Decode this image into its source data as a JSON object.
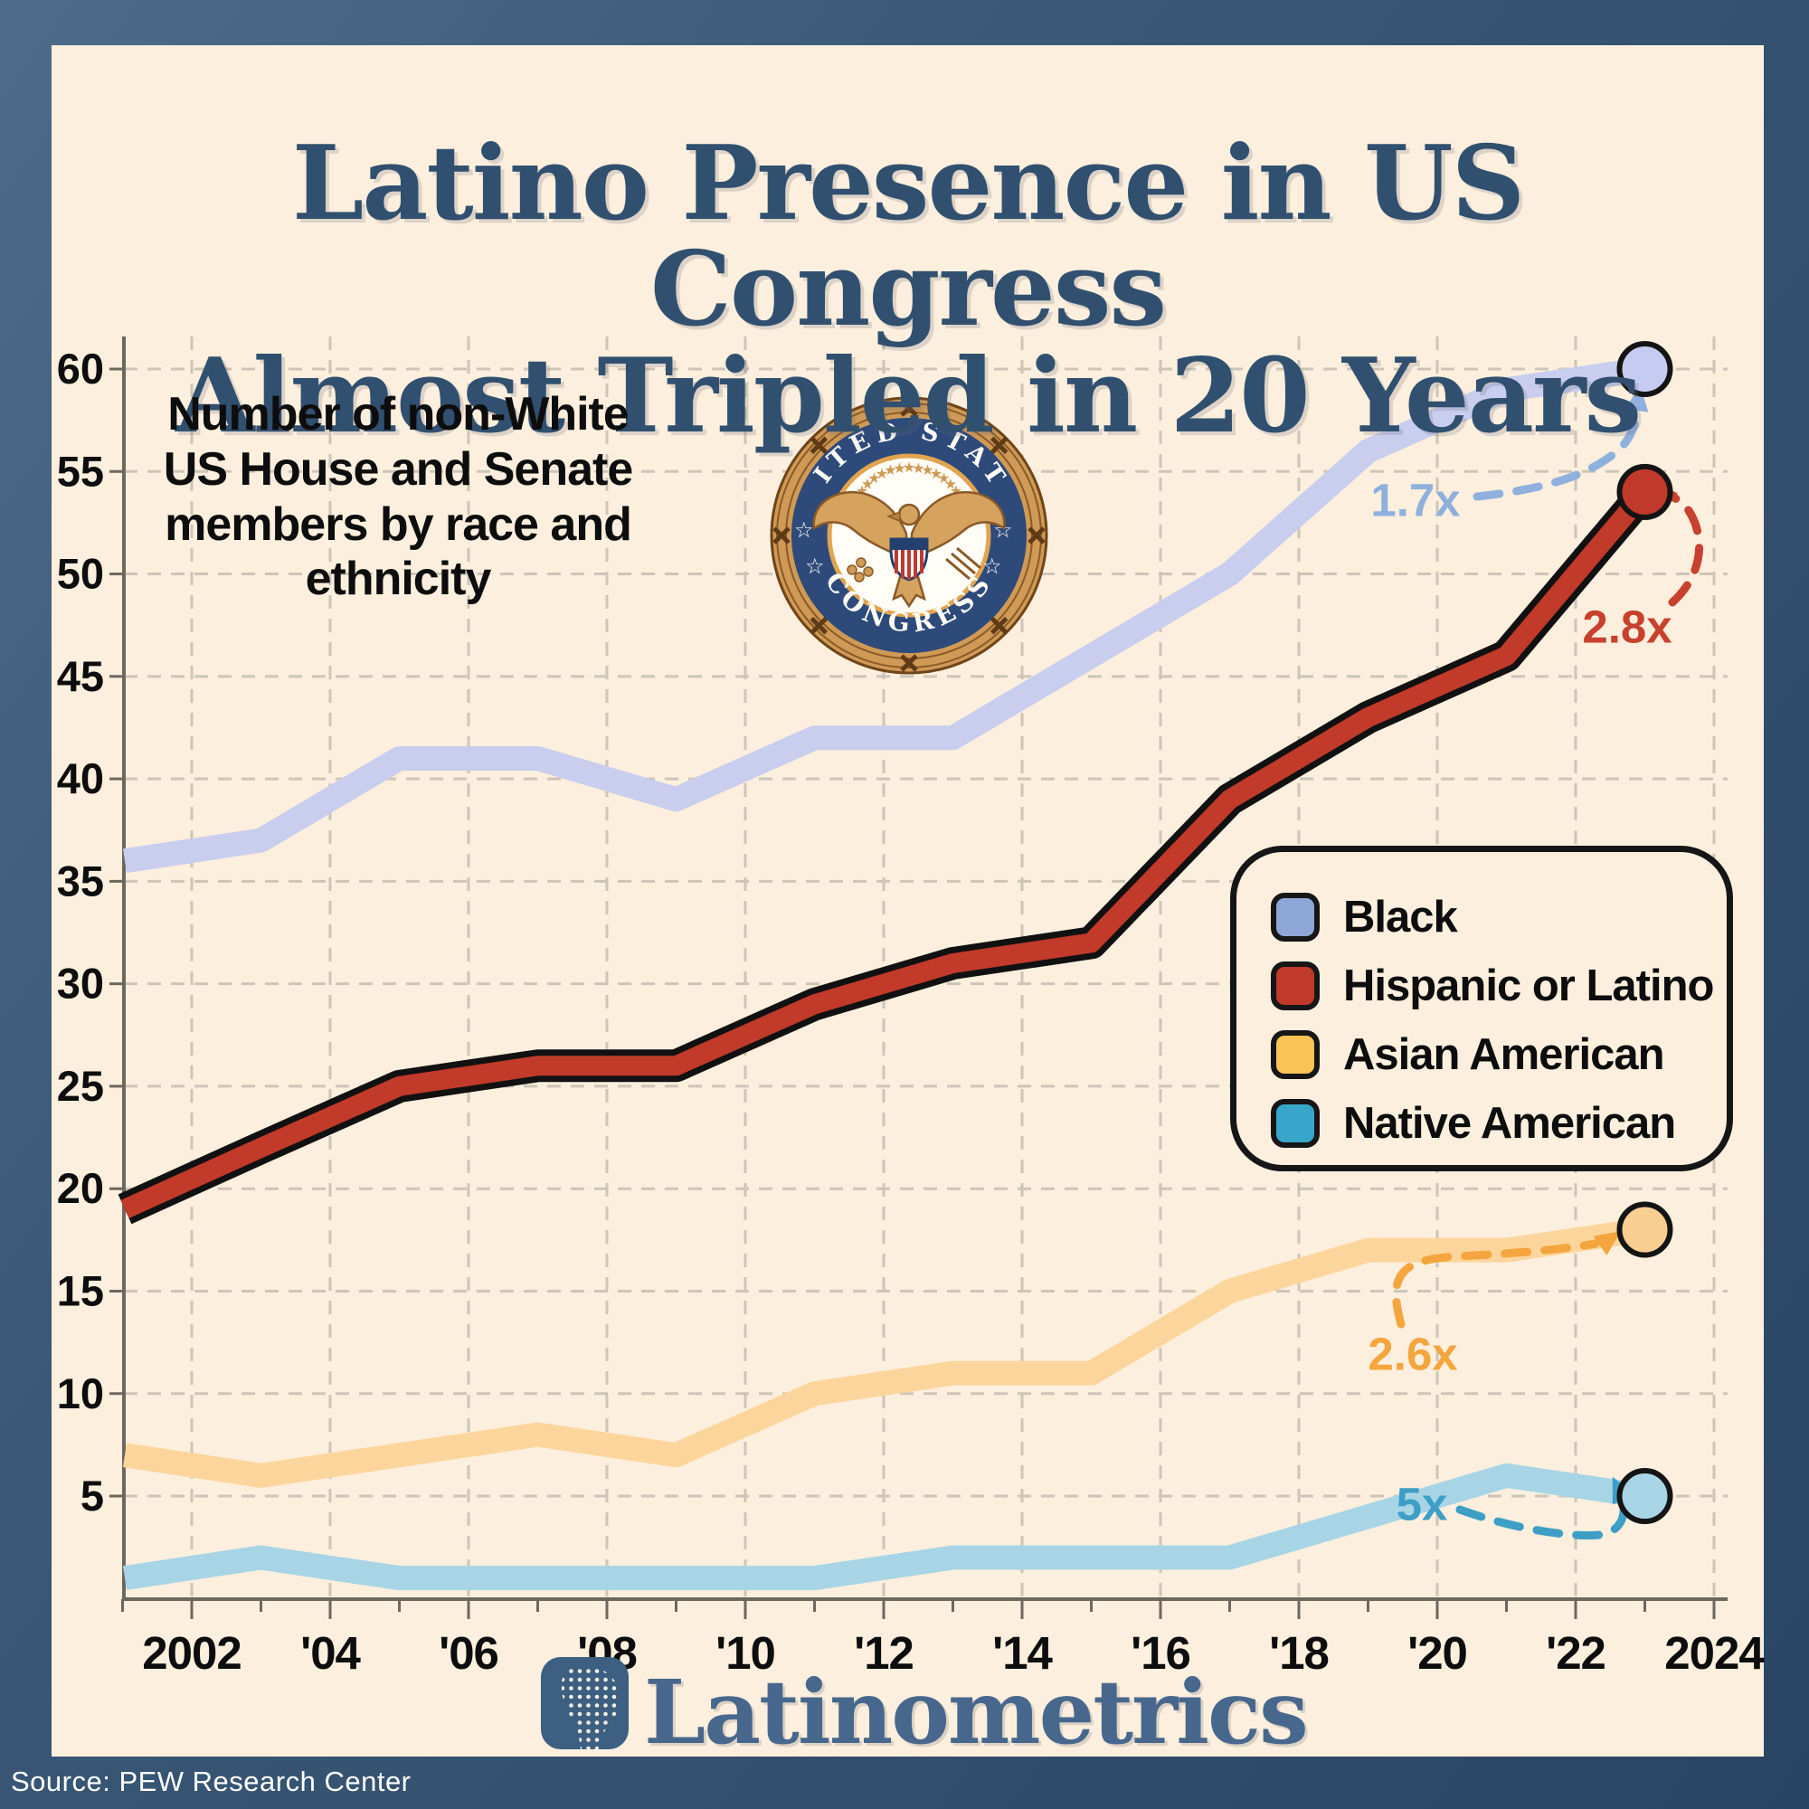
{
  "title": {
    "line1": "Latino Presence in US Congress",
    "line2": "Almost Tripled in 20 Years"
  },
  "subtitle": "Number of non-White\nUS House and Senate\nmembers by race and\nethnicity",
  "seal": {
    "top_text": "UNITED STATES",
    "bottom_text": "CONGRESS"
  },
  "legend": {
    "items": [
      {
        "label": "Black"
      },
      {
        "label": "Hispanic or Latino"
      },
      {
        "label": "Asian American"
      },
      {
        "label": "Native American"
      }
    ]
  },
  "footer": {
    "brand": "Latinometrics",
    "source": "Source: PEW Research Center"
  },
  "colors": {
    "background_card": "#fcefdd",
    "frame_blue": "#2a4564",
    "title_navy": "#31506f",
    "gridline": "#cdc5b8",
    "axis": "#6e675e"
  },
  "chart_data": {
    "type": "line",
    "title": "Number of non-White US House and Senate members by race and ethnicity",
    "x": [
      2001,
      2003,
      2005,
      2007,
      2009,
      2011,
      2013,
      2015,
      2017,
      2019,
      2021,
      2023
    ],
    "xlim": [
      2001,
      2024
    ],
    "ylim": [
      0,
      62
    ],
    "grid": "dashed",
    "legend_position": "middle-right",
    "y_ticks": [
      60,
      55,
      50,
      45,
      40,
      35,
      30,
      25,
      20,
      15,
      10,
      5
    ],
    "x_ticks": [
      {
        "year": 2002,
        "label": "2002"
      },
      {
        "year": 2004,
        "label": "'04"
      },
      {
        "year": 2006,
        "label": "'06"
      },
      {
        "year": 2008,
        "label": "'08"
      },
      {
        "year": 2010,
        "label": "'10"
      },
      {
        "year": 2012,
        "label": "'12"
      },
      {
        "year": 2014,
        "label": "'14"
      },
      {
        "year": 2016,
        "label": "'16"
      },
      {
        "year": 2018,
        "label": "'18"
      },
      {
        "year": 2020,
        "label": "'20"
      },
      {
        "year": 2022,
        "label": "'22"
      },
      {
        "year": 2024,
        "label": "2024"
      }
    ],
    "series": [
      {
        "name": "Black",
        "values": [
          36,
          37,
          41,
          41,
          39,
          42,
          42,
          46,
          50,
          56,
          59,
          60
        ],
        "line_color": "#c9cdee",
        "swatch_color": "#8ea6d8",
        "dot_fill": "#c6ccf1",
        "multiplier": "1.7x",
        "annotation_color": "#8fb0dd"
      },
      {
        "name": "Hispanic or Latino",
        "values": [
          19,
          22,
          25,
          26,
          26,
          29,
          31,
          32,
          39,
          43,
          46,
          54
        ],
        "line_color": "#c13a2a",
        "outline_color": "#111111",
        "swatch_color": "#c0392b",
        "dot_fill": "#c0392b",
        "multiplier": "2.8x",
        "annotation_color": "#c8402e"
      },
      {
        "name": "Asian American",
        "values": [
          7,
          6,
          7,
          8,
          7,
          10,
          11,
          11,
          15,
          17,
          17,
          18
        ],
        "line_color": "#fcd59c",
        "swatch_color": "#f9c455",
        "dot_fill": "#f8cf90",
        "multiplier": "2.6x",
        "annotation_color": "#f4a53e"
      },
      {
        "name": "Native American",
        "values": [
          1,
          2,
          1,
          1,
          1,
          1,
          2,
          2,
          2,
          4,
          6,
          5
        ],
        "line_color": "#a8d5e5",
        "swatch_color": "#38a6ca",
        "dot_fill": "#a8d5e6",
        "multiplier": "5x",
        "annotation_color": "#3d9ec6"
      }
    ]
  }
}
